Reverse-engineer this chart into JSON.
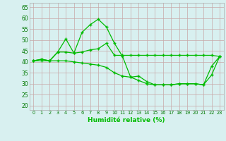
{
  "x": [
    0,
    1,
    2,
    3,
    4,
    5,
    6,
    7,
    8,
    9,
    10,
    11,
    12,
    13,
    14,
    15,
    16,
    17,
    18,
    19,
    20,
    21,
    22,
    23
  ],
  "line1": [
    40.5,
    41.2,
    40.5,
    44.5,
    50.5,
    44.0,
    53.5,
    57.0,
    59.5,
    56.0,
    48.5,
    42.5,
    33.0,
    33.5,
    31.0,
    29.5,
    29.5,
    29.5,
    30.0,
    30.0,
    30.0,
    29.5,
    38.0,
    42.5
  ],
  "line2": [
    40.5,
    41.2,
    40.5,
    44.5,
    44.5,
    44.0,
    44.5,
    45.5,
    46.0,
    48.5,
    43.0,
    43.0,
    43.0,
    43.0,
    43.0,
    43.0,
    43.0,
    43.0,
    43.0,
    43.0,
    43.0,
    43.0,
    43.0,
    42.5
  ],
  "line3": [
    40.5,
    40.5,
    40.5,
    40.5,
    40.5,
    40.0,
    39.5,
    39.0,
    38.5,
    37.5,
    35.0,
    33.5,
    33.0,
    31.5,
    30.0,
    29.5,
    29.5,
    29.5,
    30.0,
    30.0,
    30.0,
    29.5,
    34.0,
    42.5
  ],
  "line_color": "#00bb00",
  "bg_color": "#d8f0f0",
  "grid_color": "#c8a8a8",
  "ylabel_ticks": [
    20,
    25,
    30,
    35,
    40,
    45,
    50,
    55,
    60,
    65
  ],
  "ylim": [
    18,
    67
  ],
  "xlim": [
    -0.5,
    23.5
  ],
  "xlabel": "Humidité relative (%)",
  "marker": "+"
}
